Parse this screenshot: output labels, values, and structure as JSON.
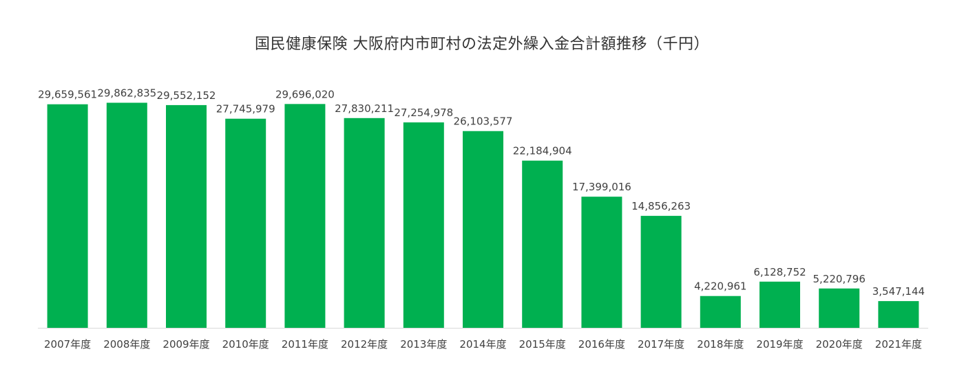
{
  "chart_data": {
    "type": "bar",
    "title": "国民健康保険 大阪府内市町村の法定外繰入金合計額推移（千円）",
    "xlabel": "",
    "ylabel": "",
    "ylim": [
      0,
      30000000
    ],
    "grid": false,
    "legend": "none",
    "bar_color": "#00B050",
    "axis_color": "#d9d9d9",
    "categories": [
      "2007年度",
      "2008年度",
      "2009年度",
      "2010年度",
      "2011年度",
      "2012年度",
      "2013年度",
      "2014年度",
      "2015年度",
      "2016年度",
      "2017年度",
      "2018年度",
      "2019年度",
      "2020年度",
      "2021年度"
    ],
    "values": [
      29659561,
      29862835,
      29552152,
      27745979,
      29696020,
      27830211,
      27254978,
      26103577,
      22184904,
      17399016,
      14856263,
      4220961,
      6128752,
      5220796,
      3547144
    ],
    "value_labels": [
      "29,659,561",
      "29,862,835",
      "29,552,152",
      "27,745,979",
      "29,696,020",
      "27,830,211",
      "27,254,978",
      "26,103,577",
      "22,184,904",
      "17,399,016",
      "14,856,263",
      "4,220,961",
      "6,128,752",
      "5,220,796",
      "3,547,144"
    ]
  }
}
